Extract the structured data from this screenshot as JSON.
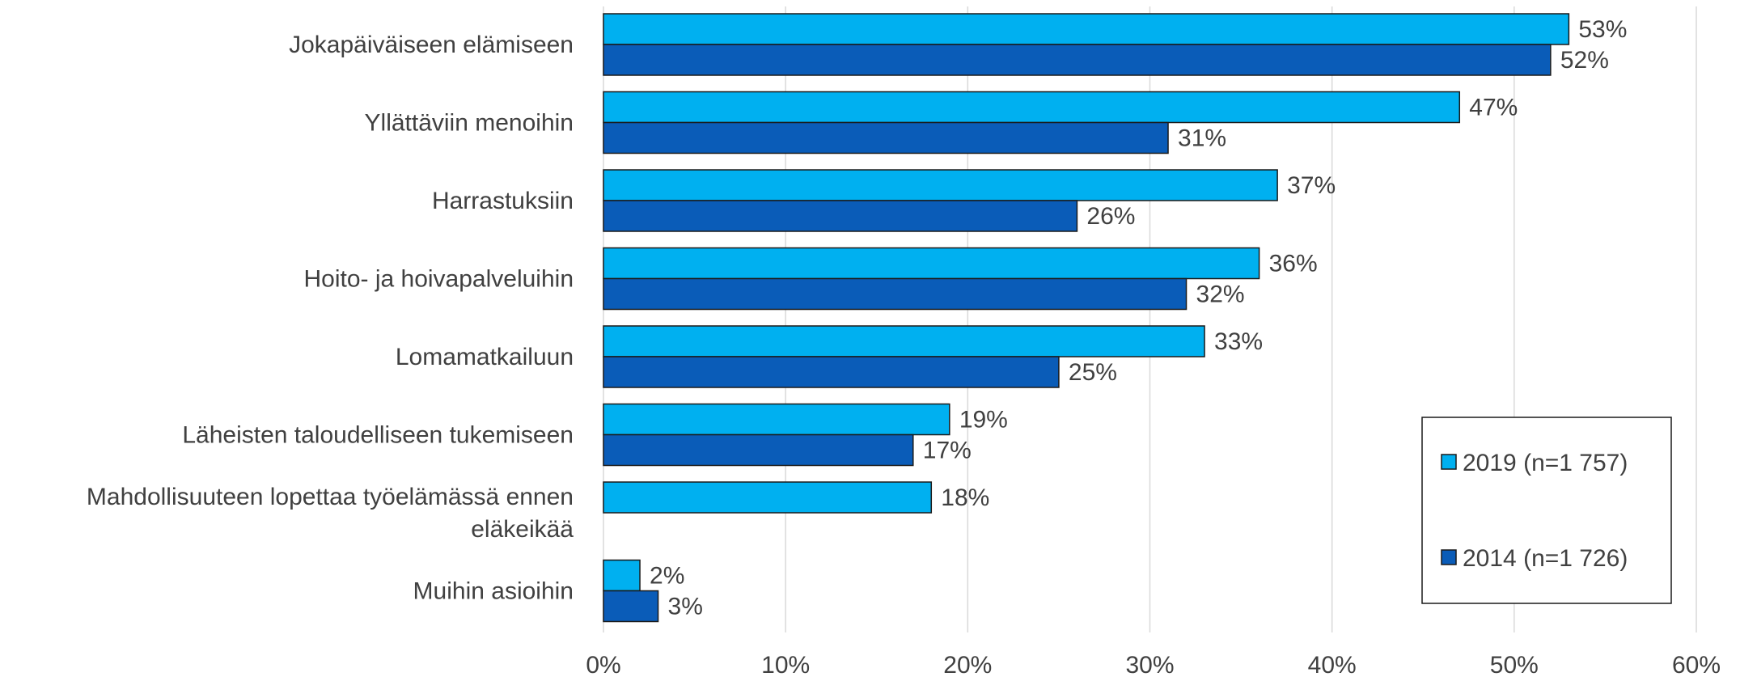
{
  "chart_data": {
    "type": "bar",
    "orientation": "horizontal",
    "categories": [
      [
        "Jokapäiväiseen elämiseen"
      ],
      [
        "Yllättäviin menoihin"
      ],
      [
        "Harrastuksiin"
      ],
      [
        "Hoito- ja hoivapalveluihin"
      ],
      [
        "Lomamatkailuun"
      ],
      [
        "Läheisten taloudelliseen tukemiseen"
      ],
      [
        "Mahdollisuuteen lopettaa työelämässä ennen",
        "eläkeikää"
      ],
      [
        "Muihin asioihin"
      ]
    ],
    "series": [
      {
        "name": "2019 (n=1 757)",
        "color": "#00b0f0",
        "values": [
          53,
          47,
          37,
          36,
          33,
          19,
          18,
          2
        ],
        "labels": [
          "53%",
          "47%",
          "37%",
          "36%",
          "33%",
          "19%",
          "18%",
          "2%"
        ]
      },
      {
        "name": "2014 (n=1 726)",
        "color": "#0a5cb8",
        "values": [
          52,
          31,
          26,
          32,
          25,
          17,
          null,
          3
        ],
        "labels": [
          "52%",
          "31%",
          "26%",
          "32%",
          "25%",
          "17%",
          "",
          "3%"
        ]
      }
    ],
    "xlim": [
      0,
      60
    ],
    "xticks": [
      0,
      10,
      20,
      30,
      40,
      50,
      60
    ],
    "xtick_labels": [
      "0%",
      "10%",
      "20%",
      "30%",
      "40%",
      "50%",
      "60%"
    ],
    "grid": true,
    "legend_position": "bottom-right"
  }
}
